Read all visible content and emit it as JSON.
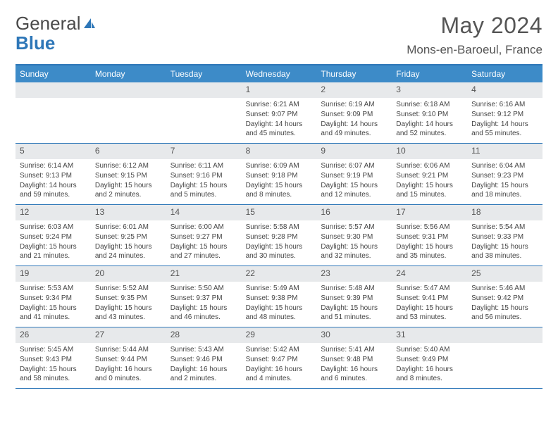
{
  "logo": {
    "text1": "General",
    "text2": "Blue",
    "accent": "#2e77b8"
  },
  "title": "May 2024",
  "location": "Mons-en-Baroeul, France",
  "weekdays": [
    "Sunday",
    "Monday",
    "Tuesday",
    "Wednesday",
    "Thursday",
    "Friday",
    "Saturday"
  ],
  "colors": {
    "header_bg": "#3d8bc8",
    "header_border": "#2e77b8",
    "daybar_bg": "#e7e9eb",
    "text": "#444444"
  },
  "layout": {
    "cols": 7,
    "rows": 5,
    "first_weekday_index": 3
  },
  "days": [
    {
      "n": "1",
      "sunrise": "6:21 AM",
      "sunset": "9:07 PM",
      "daylight": "14 hours and 45 minutes."
    },
    {
      "n": "2",
      "sunrise": "6:19 AM",
      "sunset": "9:09 PM",
      "daylight": "14 hours and 49 minutes."
    },
    {
      "n": "3",
      "sunrise": "6:18 AM",
      "sunset": "9:10 PM",
      "daylight": "14 hours and 52 minutes."
    },
    {
      "n": "4",
      "sunrise": "6:16 AM",
      "sunset": "9:12 PM",
      "daylight": "14 hours and 55 minutes."
    },
    {
      "n": "5",
      "sunrise": "6:14 AM",
      "sunset": "9:13 PM",
      "daylight": "14 hours and 59 minutes."
    },
    {
      "n": "6",
      "sunrise": "6:12 AM",
      "sunset": "9:15 PM",
      "daylight": "15 hours and 2 minutes."
    },
    {
      "n": "7",
      "sunrise": "6:11 AM",
      "sunset": "9:16 PM",
      "daylight": "15 hours and 5 minutes."
    },
    {
      "n": "8",
      "sunrise": "6:09 AM",
      "sunset": "9:18 PM",
      "daylight": "15 hours and 8 minutes."
    },
    {
      "n": "9",
      "sunrise": "6:07 AM",
      "sunset": "9:19 PM",
      "daylight": "15 hours and 12 minutes."
    },
    {
      "n": "10",
      "sunrise": "6:06 AM",
      "sunset": "9:21 PM",
      "daylight": "15 hours and 15 minutes."
    },
    {
      "n": "11",
      "sunrise": "6:04 AM",
      "sunset": "9:23 PM",
      "daylight": "15 hours and 18 minutes."
    },
    {
      "n": "12",
      "sunrise": "6:03 AM",
      "sunset": "9:24 PM",
      "daylight": "15 hours and 21 minutes."
    },
    {
      "n": "13",
      "sunrise": "6:01 AM",
      "sunset": "9:25 PM",
      "daylight": "15 hours and 24 minutes."
    },
    {
      "n": "14",
      "sunrise": "6:00 AM",
      "sunset": "9:27 PM",
      "daylight": "15 hours and 27 minutes."
    },
    {
      "n": "15",
      "sunrise": "5:58 AM",
      "sunset": "9:28 PM",
      "daylight": "15 hours and 30 minutes."
    },
    {
      "n": "16",
      "sunrise": "5:57 AM",
      "sunset": "9:30 PM",
      "daylight": "15 hours and 32 minutes."
    },
    {
      "n": "17",
      "sunrise": "5:56 AM",
      "sunset": "9:31 PM",
      "daylight": "15 hours and 35 minutes."
    },
    {
      "n": "18",
      "sunrise": "5:54 AM",
      "sunset": "9:33 PM",
      "daylight": "15 hours and 38 minutes."
    },
    {
      "n": "19",
      "sunrise": "5:53 AM",
      "sunset": "9:34 PM",
      "daylight": "15 hours and 41 minutes."
    },
    {
      "n": "20",
      "sunrise": "5:52 AM",
      "sunset": "9:35 PM",
      "daylight": "15 hours and 43 minutes."
    },
    {
      "n": "21",
      "sunrise": "5:50 AM",
      "sunset": "9:37 PM",
      "daylight": "15 hours and 46 minutes."
    },
    {
      "n": "22",
      "sunrise": "5:49 AM",
      "sunset": "9:38 PM",
      "daylight": "15 hours and 48 minutes."
    },
    {
      "n": "23",
      "sunrise": "5:48 AM",
      "sunset": "9:39 PM",
      "daylight": "15 hours and 51 minutes."
    },
    {
      "n": "24",
      "sunrise": "5:47 AM",
      "sunset": "9:41 PM",
      "daylight": "15 hours and 53 minutes."
    },
    {
      "n": "25",
      "sunrise": "5:46 AM",
      "sunset": "9:42 PM",
      "daylight": "15 hours and 56 minutes."
    },
    {
      "n": "26",
      "sunrise": "5:45 AM",
      "sunset": "9:43 PM",
      "daylight": "15 hours and 58 minutes."
    },
    {
      "n": "27",
      "sunrise": "5:44 AM",
      "sunset": "9:44 PM",
      "daylight": "16 hours and 0 minutes."
    },
    {
      "n": "28",
      "sunrise": "5:43 AM",
      "sunset": "9:46 PM",
      "daylight": "16 hours and 2 minutes."
    },
    {
      "n": "29",
      "sunrise": "5:42 AM",
      "sunset": "9:47 PM",
      "daylight": "16 hours and 4 minutes."
    },
    {
      "n": "30",
      "sunrise": "5:41 AM",
      "sunset": "9:48 PM",
      "daylight": "16 hours and 6 minutes."
    },
    {
      "n": "31",
      "sunrise": "5:40 AM",
      "sunset": "9:49 PM",
      "daylight": "16 hours and 8 minutes."
    }
  ],
  "labels": {
    "sunrise": "Sunrise:",
    "sunset": "Sunset:",
    "daylight": "Daylight:"
  }
}
